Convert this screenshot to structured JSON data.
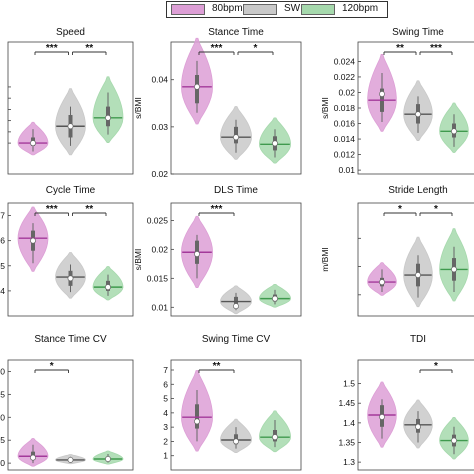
{
  "legend": [
    {
      "label": "80bpm",
      "color": "#dd9fd6"
    },
    {
      "label": "SW",
      "color": "#c9c9c9"
    },
    {
      "label": "120bpm",
      "color": "#a6d9ad"
    }
  ],
  "chart_data": [
    {
      "type": "violin",
      "title": "Speed",
      "ylabel": "",
      "ylim": [
        0.925,
        1.16
      ],
      "yticks": [
        0.98,
        1.0,
        1.02,
        1.04,
        1.06,
        1.08
      ],
      "ytick_labels": [
        "",
        "",
        "",
        "",
        "",
        ""
      ],
      "series": [
        {
          "name": "80bpm",
          "median": 0.98,
          "q1": 0.975,
          "q3": 0.99,
          "min": 0.965,
          "max": 1.005,
          "mean": 0.98
        },
        {
          "name": "SW",
          "median": 1.01,
          "q1": 0.99,
          "q3": 1.03,
          "min": 0.975,
          "max": 1.045,
          "mean": 1.01
        },
        {
          "name": "120bpm",
          "median": 1.025,
          "q1": 1.01,
          "q3": 1.045,
          "min": 0.995,
          "max": 1.07,
          "mean": 1.025
        }
      ],
      "significance": [
        {
          "from": 0,
          "to": 1,
          "label": "***"
        },
        {
          "from": 1,
          "to": 2,
          "label": "**"
        }
      ]
    },
    {
      "type": "violin",
      "title": "Stance Time",
      "ylabel": "s/BMI",
      "ylim": [
        0.02,
        0.048
      ],
      "yticks": [
        0.02,
        0.03,
        0.04
      ],
      "ytick_labels": [
        "0.02",
        "0.03",
        "0.04"
      ],
      "series": [
        {
          "name": "80bpm",
          "median": 0.0385,
          "q1": 0.035,
          "q3": 0.041,
          "min": 0.033,
          "max": 0.044,
          "mean": 0.0385
        },
        {
          "name": "SW",
          "median": 0.0278,
          "q1": 0.0265,
          "q3": 0.03,
          "min": 0.0245,
          "max": 0.0315,
          "mean": 0.0278
        },
        {
          "name": "120bpm",
          "median": 0.0263,
          "q1": 0.025,
          "q3": 0.028,
          "min": 0.0235,
          "max": 0.0295,
          "mean": 0.0265
        }
      ],
      "significance": [
        {
          "from": 0,
          "to": 1,
          "label": "***"
        },
        {
          "from": 1,
          "to": 2,
          "label": "*"
        }
      ]
    },
    {
      "type": "violin",
      "title": "Swing Time",
      "ylabel": "s/BMI",
      "ylim": [
        0.0095,
        0.0265
      ],
      "yticks": [
        0.01,
        0.012,
        0.014,
        0.016,
        0.018,
        0.02,
        0.022,
        0.024
      ],
      "ytick_labels": [
        "0.01",
        "0.012",
        "0.014",
        "0.016",
        "0.018",
        "0.02",
        "0.022",
        "0.024"
      ],
      "series": [
        {
          "name": "80bpm",
          "median": 0.019,
          "q1": 0.0175,
          "q3": 0.0205,
          "min": 0.0162,
          "max": 0.0225,
          "mean": 0.0198
        },
        {
          "name": "SW",
          "median": 0.0172,
          "q1": 0.016,
          "q3": 0.0185,
          "min": 0.0148,
          "max": 0.0195,
          "mean": 0.0172
        },
        {
          "name": "120bpm",
          "median": 0.015,
          "q1": 0.0142,
          "q3": 0.016,
          "min": 0.013,
          "max": 0.0172,
          "mean": 0.015
        }
      ],
      "significance": [
        {
          "from": 0,
          "to": 1,
          "label": "**"
        },
        {
          "from": 1,
          "to": 2,
          "label": "***"
        }
      ]
    },
    {
      "type": "violin",
      "title": "Cycle Time",
      "ylabel": "",
      "ylim": [
        0.035,
        0.08
      ],
      "yticks": [
        0.045,
        0.055,
        0.065,
        0.075
      ],
      "ytick_labels": [
        "4",
        "5",
        "6",
        "7"
      ],
      "series": [
        {
          "name": "80bpm",
          "median": 0.066,
          "q1": 0.061,
          "q3": 0.069,
          "min": 0.056,
          "max": 0.072,
          "mean": 0.065
        },
        {
          "name": "SW",
          "median": 0.0505,
          "q1": 0.047,
          "q3": 0.053,
          "min": 0.0445,
          "max": 0.0555,
          "mean": 0.05
        },
        {
          "name": "120bpm",
          "median": 0.0465,
          "q1": 0.045,
          "q3": 0.049,
          "min": 0.043,
          "max": 0.0515,
          "mean": 0.0465
        }
      ],
      "significance": [
        {
          "from": 0,
          "to": 1,
          "label": "***"
        },
        {
          "from": 1,
          "to": 2,
          "label": "**"
        }
      ]
    },
    {
      "type": "violin",
      "title": "DLS Time",
      "ylabel": "s/BMI",
      "ylim": [
        0.0085,
        0.028
      ],
      "yticks": [
        0.01,
        0.015,
        0.02,
        0.025
      ],
      "ytick_labels": [
        "0.01",
        "0.015",
        "0.02",
        "0.025"
      ],
      "series": [
        {
          "name": "80bpm",
          "median": 0.0195,
          "q1": 0.0175,
          "q3": 0.0215,
          "min": 0.015,
          "max": 0.0225,
          "mean": 0.0192
        },
        {
          "name": "SW",
          "median": 0.011,
          "q1": 0.0103,
          "q3": 0.0118,
          "min": 0.0095,
          "max": 0.0125,
          "mean": 0.0102
        },
        {
          "name": "120bpm",
          "median": 0.0115,
          "q1": 0.011,
          "q3": 0.0122,
          "min": 0.0105,
          "max": 0.013,
          "mean": 0.0115
        }
      ],
      "significance": [
        {
          "from": 0,
          "to": 1,
          "label": "***"
        }
      ]
    },
    {
      "type": "violin",
      "title": "Stride Length",
      "ylabel": "m/BMI",
      "ylim": [
        0.0225,
        0.0625
      ],
      "yticks": [
        0.03,
        0.04,
        0.05
      ],
      "ytick_labels": [
        "",
        "",
        ""
      ],
      "series": [
        {
          "name": "80bpm",
          "median": 0.0345,
          "q1": 0.033,
          "q3": 0.036,
          "min": 0.031,
          "max": 0.039,
          "mean": 0.0345
        },
        {
          "name": "SW",
          "median": 0.037,
          "q1": 0.033,
          "q3": 0.041,
          "min": 0.029,
          "max": 0.044,
          "mean": 0.037
        },
        {
          "name": "120bpm",
          "median": 0.039,
          "q1": 0.035,
          "q3": 0.043,
          "min": 0.031,
          "max": 0.047,
          "mean": 0.039
        }
      ],
      "significance": [
        {
          "from": 0,
          "to": 1,
          "label": "*"
        },
        {
          "from": 1,
          "to": 2,
          "label": "*"
        }
      ]
    },
    {
      "type": "violin",
      "title": "Stance Time CV",
      "ylabel": "",
      "ylim": [
        -1.5,
        22.5
      ],
      "yticks": [
        0,
        5,
        10,
        15,
        20
      ],
      "ytick_labels": [
        "0",
        "5",
        "10",
        "15",
        "20"
      ],
      "series": [
        {
          "name": "80bpm",
          "median": 1.5,
          "q1": 0.8,
          "q3": 2.5,
          "min": 0,
          "max": 4,
          "mean": 1.2
        },
        {
          "name": "SW",
          "median": 0.7,
          "q1": 0.4,
          "q3": 1.0,
          "min": 0.1,
          "max": 1.4,
          "mean": 0.7
        },
        {
          "name": "120bpm",
          "median": 0.9,
          "q1": 0.5,
          "q3": 1.3,
          "min": 0.1,
          "max": 2.0,
          "mean": 0.9
        }
      ],
      "significance": [
        {
          "from": 0,
          "to": 1,
          "label": "*"
        }
      ]
    },
    {
      "type": "violin",
      "title": "Swing Time CV",
      "ylabel": "",
      "ylim": [
        0,
        7.7
      ],
      "yticks": [
        1,
        2,
        3,
        4,
        5,
        6,
        7
      ],
      "ytick_labels": [
        "1",
        "2",
        "3",
        "4",
        "5",
        "6",
        "7"
      ],
      "series": [
        {
          "name": "80bpm",
          "median": 3.7,
          "q1": 2.9,
          "q3": 4.6,
          "min": 2.0,
          "max": 5.6,
          "mean": 3.4
        },
        {
          "name": "SW",
          "median": 2.1,
          "q1": 1.8,
          "q3": 2.5,
          "min": 1.5,
          "max": 3.0,
          "mean": 2.0
        },
        {
          "name": "120bpm",
          "median": 2.3,
          "q1": 2.0,
          "q3": 2.8,
          "min": 1.6,
          "max": 3.5,
          "mean": 2.3
        }
      ],
      "significance": [
        {
          "from": 0,
          "to": 1,
          "label": "**"
        }
      ]
    },
    {
      "type": "violin",
      "title": "TDI",
      "ylabel": "",
      "ylim": [
        1.28,
        1.56
      ],
      "yticks": [
        1.3,
        1.35,
        1.4,
        1.45,
        1.5
      ],
      "ytick_labels": [
        "1.3",
        "1.35",
        "1.4",
        "1.45",
        "1.5"
      ],
      "series": [
        {
          "name": "80bpm",
          "median": 1.42,
          "q1": 1.39,
          "q3": 1.445,
          "min": 1.36,
          "max": 1.46,
          "mean": 1.415
        },
        {
          "name": "SW",
          "median": 1.395,
          "q1": 1.375,
          "q3": 1.41,
          "min": 1.35,
          "max": 1.43,
          "mean": 1.39
        },
        {
          "name": "120bpm",
          "median": 1.355,
          "q1": 1.34,
          "q3": 1.37,
          "min": 1.32,
          "max": 1.39,
          "mean": 1.355
        }
      ],
      "significance": [
        {
          "from": 1,
          "to": 2,
          "label": "*"
        }
      ]
    }
  ]
}
